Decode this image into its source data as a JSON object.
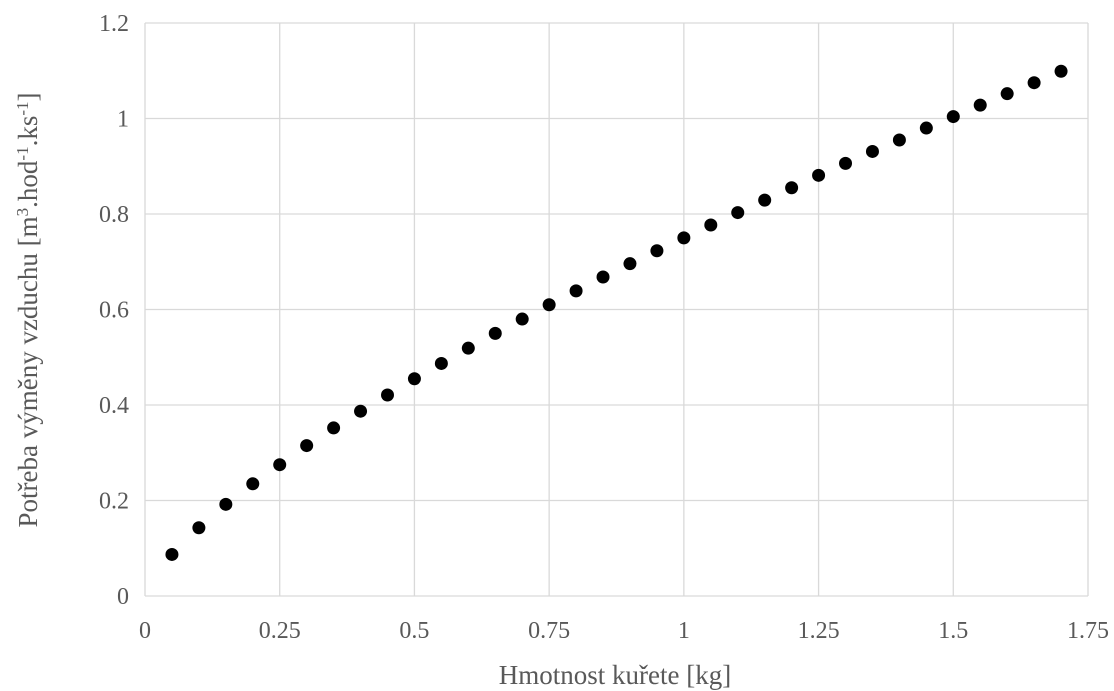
{
  "chart_data": {
    "type": "scatter",
    "xlabel": "Hmotnost kuřete [kg]",
    "ylabel": {
      "parts": [
        {
          "text": "Potřeba výměny vzduchu [m",
          "sup": false
        },
        {
          "text": "3",
          "sup": true
        },
        {
          "text": ".hod",
          "sup": false
        },
        {
          "text": "-1",
          "sup": true
        },
        {
          "text": ".ks",
          "sup": false
        },
        {
          "text": "-1",
          "sup": true
        },
        {
          "text": "]",
          "sup": false
        }
      ]
    },
    "xlim": [
      0,
      1.75
    ],
    "ylim": [
      0,
      1.2
    ],
    "x_ticks": [
      "0",
      "0.25",
      "0.5",
      "0.75",
      "1",
      "1.25",
      "1.5",
      "1.75"
    ],
    "y_ticks": [
      "0",
      "0.2",
      "0.4",
      "0.6",
      "0.8",
      "1",
      "1.2"
    ],
    "grid": true,
    "marker_color": "#000000",
    "points": [
      {
        "x": 0.05,
        "y": 0.087
      },
      {
        "x": 0.1,
        "y": 0.143
      },
      {
        "x": 0.15,
        "y": 0.192
      },
      {
        "x": 0.2,
        "y": 0.235
      },
      {
        "x": 0.25,
        "y": 0.275
      },
      {
        "x": 0.3,
        "y": 0.315
      },
      {
        "x": 0.35,
        "y": 0.352
      },
      {
        "x": 0.4,
        "y": 0.387
      },
      {
        "x": 0.45,
        "y": 0.421
      },
      {
        "x": 0.5,
        "y": 0.455
      },
      {
        "x": 0.55,
        "y": 0.487
      },
      {
        "x": 0.6,
        "y": 0.519
      },
      {
        "x": 0.65,
        "y": 0.55
      },
      {
        "x": 0.7,
        "y": 0.58
      },
      {
        "x": 0.75,
        "y": 0.61
      },
      {
        "x": 0.8,
        "y": 0.639
      },
      {
        "x": 0.85,
        "y": 0.668
      },
      {
        "x": 0.9,
        "y": 0.696
      },
      {
        "x": 0.95,
        "y": 0.723
      },
      {
        "x": 1.0,
        "y": 0.75
      },
      {
        "x": 1.05,
        "y": 0.777
      },
      {
        "x": 1.1,
        "y": 0.803
      },
      {
        "x": 1.15,
        "y": 0.829
      },
      {
        "x": 1.2,
        "y": 0.855
      },
      {
        "x": 1.25,
        "y": 0.881
      },
      {
        "x": 1.3,
        "y": 0.906
      },
      {
        "x": 1.35,
        "y": 0.931
      },
      {
        "x": 1.4,
        "y": 0.955
      },
      {
        "x": 1.45,
        "y": 0.98
      },
      {
        "x": 1.5,
        "y": 1.004
      },
      {
        "x": 1.55,
        "y": 1.028
      },
      {
        "x": 1.6,
        "y": 1.052
      },
      {
        "x": 1.65,
        "y": 1.075
      },
      {
        "x": 1.7,
        "y": 1.099
      }
    ]
  }
}
